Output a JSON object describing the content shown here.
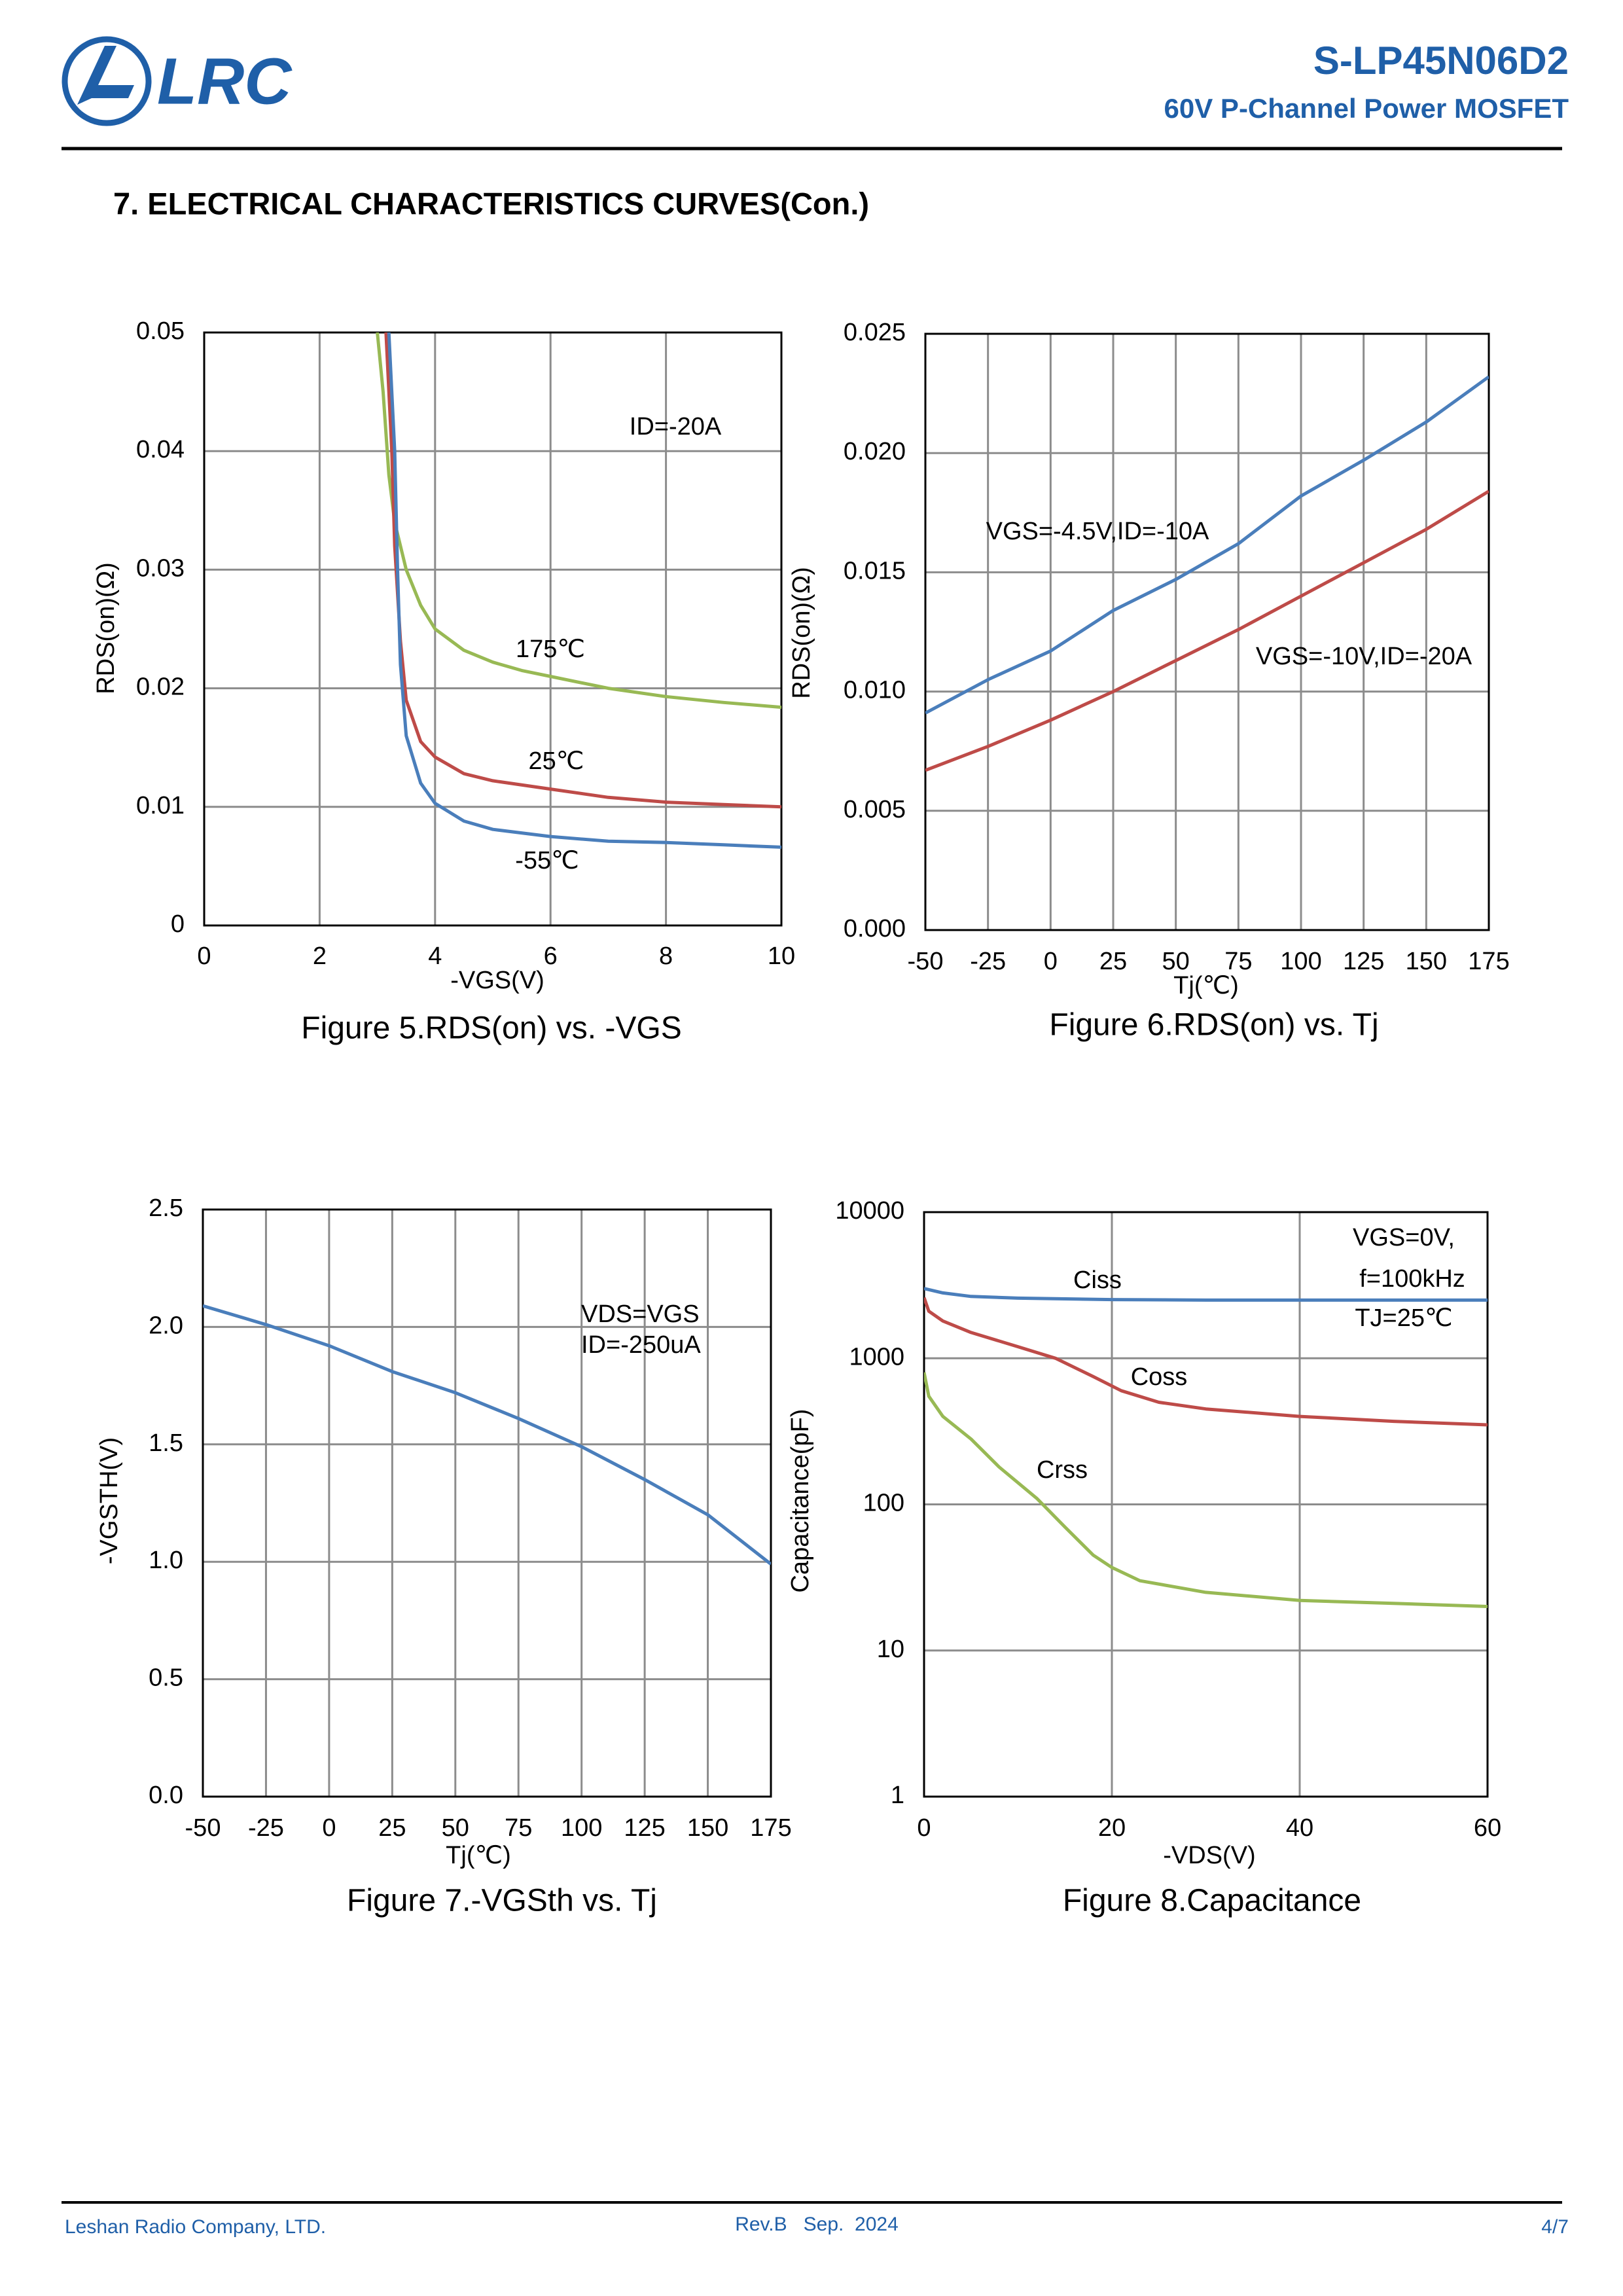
{
  "header": {
    "logo_text": "LRC",
    "part_number": "S-LP45N06D2",
    "description": "60V P-Channel Power MOSFET"
  },
  "section_title": "7. ELECTRICAL CHARACTERISTICS CURVES(Con.)",
  "chart_data": [
    {
      "type": "line",
      "title": "Figure 5.RDS(on) vs. -VGS",
      "x_label": "-VGS(V)",
      "y_label": "RDS(on)(Ω)",
      "xlim": [
        0,
        10
      ],
      "ylim": [
        0,
        0.05
      ],
      "xticks": [
        0,
        2,
        4,
        6,
        8,
        10
      ],
      "yticks": [
        0,
        0.01,
        0.02,
        0.03,
        0.04,
        0.05
      ],
      "grid": true,
      "annotations": [
        "ID=-20A"
      ],
      "series": [
        {
          "name": "175℃",
          "color": "#98b954",
          "x": [
            3.0,
            3.1,
            3.2,
            3.3,
            3.5,
            3.75,
            4,
            4.5,
            5,
            5.5,
            6,
            7,
            8,
            9,
            10
          ],
          "values": [
            0.05,
            0.045,
            0.038,
            0.034,
            0.03,
            0.027,
            0.025,
            0.0232,
            0.0222,
            0.0215,
            0.021,
            0.02,
            0.0193,
            0.0188,
            0.0184
          ]
        },
        {
          "name": "25℃",
          "color": "#be4b48",
          "x": [
            3.15,
            3.25,
            3.3,
            3.4,
            3.5,
            3.75,
            4,
            4.5,
            5,
            6,
            7,
            8,
            9,
            10
          ],
          "values": [
            0.05,
            0.04,
            0.032,
            0.024,
            0.019,
            0.0155,
            0.0142,
            0.0128,
            0.0122,
            0.0115,
            0.0108,
            0.0104,
            0.0102,
            0.01
          ]
        },
        {
          "name": "-55℃",
          "color": "#4a7ebb",
          "x": [
            3.2,
            3.3,
            3.35,
            3.4,
            3.5,
            3.75,
            4,
            4.5,
            5,
            6,
            7,
            8,
            9,
            10
          ],
          "values": [
            0.05,
            0.04,
            0.03,
            0.022,
            0.016,
            0.012,
            0.0103,
            0.0088,
            0.0081,
            0.0075,
            0.0071,
            0.007,
            0.0068,
            0.0066
          ]
        }
      ]
    },
    {
      "type": "line",
      "title": "Figure 6.RDS(on) vs. Tj",
      "x_label": "Tj(℃)",
      "y_label": "RDS(on)(Ω)",
      "xlim": [
        -50,
        175
      ],
      "ylim": [
        0,
        0.025
      ],
      "xticks": [
        -50,
        -25,
        0,
        25,
        50,
        75,
        100,
        125,
        150,
        175
      ],
      "yticks": [
        {
          "value": 0,
          "label": "0.000"
        },
        0.005,
        {
          "value": 0.01,
          "label": "0.010"
        },
        0.015,
        {
          "value": 0.02,
          "label": "0.020"
        },
        0.025
      ],
      "grid": true,
      "series": [
        {
          "name": "VGS=-4.5V,ID=-10A",
          "color": "#4a7ebb",
          "x": [
            -50,
            -25,
            0,
            25,
            50,
            75,
            100,
            125,
            150,
            175
          ],
          "values": [
            0.0091,
            0.0105,
            0.0117,
            0.0134,
            0.0147,
            0.0162,
            0.0182,
            0.0197,
            0.0213,
            0.0232
          ]
        },
        {
          "name": "VGS=-10V,ID=-20A",
          "color": "#be4b48",
          "x": [
            -50,
            -25,
            0,
            25,
            50,
            75,
            100,
            125,
            150,
            175
          ],
          "values": [
            0.0067,
            0.0077,
            0.0088,
            0.01,
            0.0113,
            0.0126,
            0.014,
            0.0154,
            0.0168,
            0.0184
          ]
        }
      ]
    },
    {
      "type": "line",
      "title": "Figure 7.-VGSth vs. Tj",
      "x_label": "Tj(℃)",
      "y_label": "-VGSTH(V)",
      "xlim": [
        -50,
        175
      ],
      "ylim": [
        0,
        2.5
      ],
      "xticks": [
        -50,
        -25,
        0,
        25,
        50,
        75,
        100,
        125,
        150,
        175
      ],
      "yticks": [
        {
          "value": 0,
          "label": "0.0"
        },
        0.5,
        {
          "value": 1,
          "label": "1.0"
        },
        1.5,
        {
          "value": 2,
          "label": "2.0"
        },
        2.5
      ],
      "grid": true,
      "annotations": [
        "VDS=VGS",
        "ID=-250uA"
      ],
      "series": [
        {
          "color": "#4a7ebb",
          "x": [
            -50,
            -25,
            0,
            25,
            50,
            75,
            100,
            125,
            150,
            175
          ],
          "values": [
            2.09,
            2.01,
            1.92,
            1.81,
            1.72,
            1.61,
            1.49,
            1.35,
            1.2,
            0.99
          ]
        }
      ]
    },
    {
      "type": "line",
      "title": "Figure 8.Capacitance",
      "x_label": "-VDS(V)",
      "y_label": "Capacitance(pF)",
      "xlim": [
        0,
        60
      ],
      "ylim": [
        1,
        10000
      ],
      "y_scale": "log",
      "xticks": [
        0,
        20,
        40,
        60
      ],
      "yticks": [
        1,
        10,
        100,
        1000,
        10000
      ],
      "grid": true,
      "annotations": [
        "VGS=0V,",
        "f=100kHz",
        "TJ=25℃"
      ],
      "series": [
        {
          "name": "Ciss",
          "color": "#4a7ebb",
          "x": [
            0,
            2,
            5,
            10,
            20,
            30,
            40,
            50,
            60
          ],
          "values": [
            3000,
            2800,
            2650,
            2580,
            2520,
            2500,
            2500,
            2500,
            2500
          ]
        },
        {
          "name": "Coss",
          "color": "#be4b48",
          "x": [
            0,
            0.5,
            2,
            5,
            10,
            14,
            18,
            21,
            25,
            30,
            40,
            50,
            60
          ],
          "values": [
            2600,
            2100,
            1800,
            1500,
            1200,
            1000,
            750,
            600,
            500,
            450,
            400,
            370,
            350
          ]
        },
        {
          "name": "Crss",
          "color": "#98b954",
          "x": [
            0,
            0.5,
            2,
            5,
            8,
            12,
            15,
            18,
            20,
            23,
            30,
            40,
            50,
            60
          ],
          "values": [
            800,
            550,
            400,
            280,
            180,
            110,
            70,
            45,
            37,
            30,
            25,
            22,
            21,
            20
          ]
        }
      ]
    }
  ],
  "footer": {
    "company": "Leshan Radio Company, LTD.",
    "revision": "Rev.B   Sep.  2024",
    "page": "4/7"
  }
}
